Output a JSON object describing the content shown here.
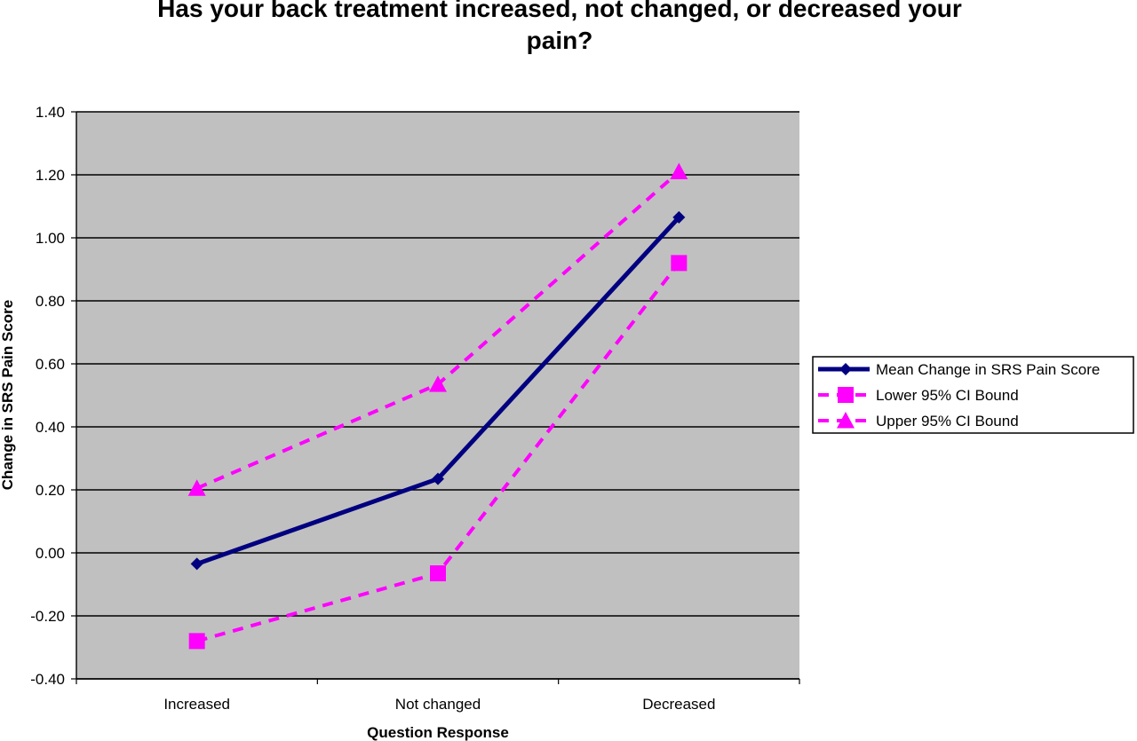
{
  "chart_data": {
    "type": "line",
    "title": "Has your back treatment increased, not changed, or decreased your\npain?",
    "xlabel": "Question Response",
    "ylabel": "Change in SRS Pain Score",
    "categories": [
      "Increased",
      "Not changed",
      "Decreased"
    ],
    "ylim": [
      -0.4,
      1.4
    ],
    "yticks": [
      "-0.40",
      "-0.20",
      "0.00",
      "0.20",
      "0.40",
      "0.60",
      "0.80",
      "1.00",
      "1.20",
      "1.40"
    ],
    "grid": true,
    "plot_background": "#c0c0c0",
    "legend_position": "right",
    "series": [
      {
        "name": "Mean Change in SRS Pain Score",
        "values": [
          -0.035,
          0.235,
          1.065
        ],
        "color": "#000080",
        "line_style": "solid",
        "marker": "diamond"
      },
      {
        "name": "Lower 95% CI Bound",
        "values": [
          -0.28,
          -0.065,
          0.92
        ],
        "color": "#ff00ff",
        "line_style": "dashed",
        "marker": "square"
      },
      {
        "name": "Upper 95% CI Bound",
        "values": [
          0.205,
          0.535,
          1.21
        ],
        "color": "#ff00ff",
        "line_style": "dashed",
        "marker": "triangle"
      }
    ]
  }
}
